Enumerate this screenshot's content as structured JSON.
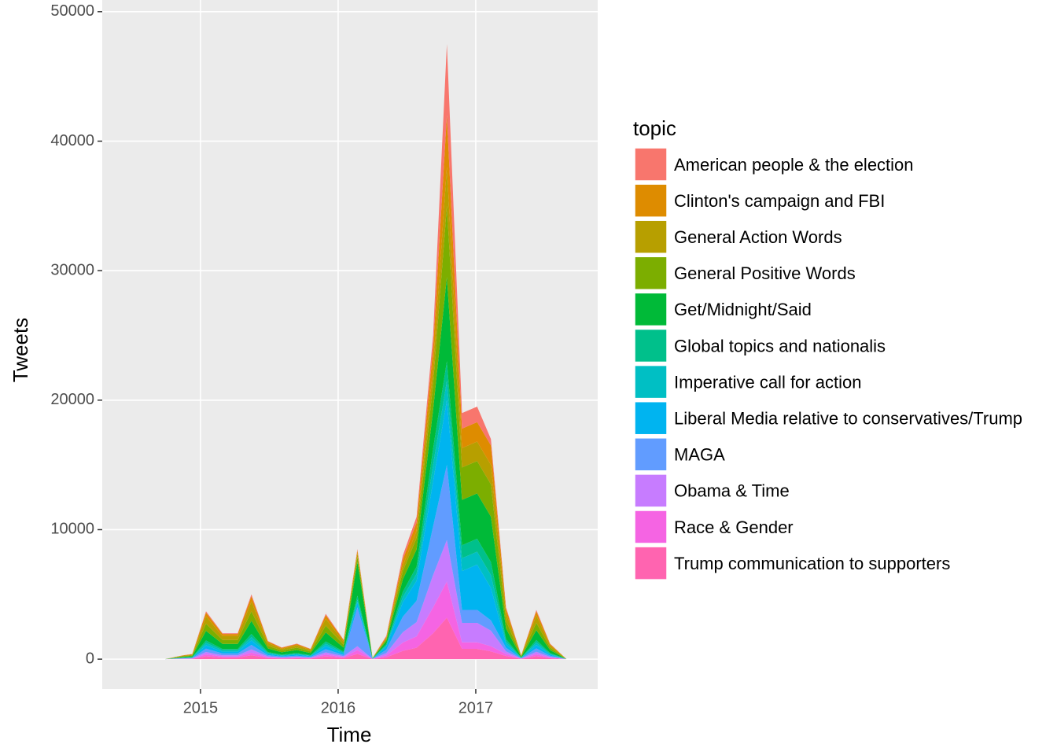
{
  "chart_data": {
    "type": "stacked-area",
    "x_label": "Time",
    "y_label": "Tweets",
    "legend_title": "topic",
    "x": [
      2014.74,
      2014.87,
      2014.94,
      2015.04,
      2015.16,
      2015.27,
      2015.37,
      2015.49,
      2015.59,
      2015.7,
      2015.8,
      2015.91,
      2016.04,
      2016.14,
      2016.25,
      2016.35,
      2016.47,
      2016.57,
      2016.69,
      2016.79,
      2016.9,
      2017.01,
      2017.11,
      2017.22,
      2017.33,
      2017.44,
      2017.54,
      2017.66
    ],
    "xlim": [
      2014.286,
      2017.886
    ],
    "xticks": [
      2015,
      2016,
      2017
    ],
    "ylim": [
      -2300,
      50900
    ],
    "yticks": [
      0,
      10000,
      20000,
      30000,
      40000,
      50000
    ],
    "grid": true,
    "series": [
      {
        "name": "American people & the election",
        "color": "#F8766D",
        "values": [
          0,
          9,
          12,
          111,
          60,
          60,
          150,
          42,
          27,
          36,
          24,
          105,
          45,
          100,
          3,
          72,
          320,
          440,
          1000,
          5500,
          1200,
          1200,
          500,
          120,
          9,
          114,
          36,
          0
        ]
      },
      {
        "name": "Clinton's campaign and FBI",
        "color": "#DE8C00",
        "values": [
          0,
          24,
          32,
          296,
          160,
          160,
          400,
          112,
          72,
          96,
          64,
          280,
          120,
          200,
          8,
          108,
          480,
          660,
          1500,
          4000,
          1500,
          1500,
          1500,
          320,
          24,
          304,
          96,
          0
        ]
      },
      {
        "name": "General Action Words",
        "color": "#B79F00",
        "values": [
          0,
          45,
          60,
          555,
          300,
          300,
          750,
          210,
          135,
          180,
          120,
          525,
          225,
          300,
          15,
          90,
          400,
          550,
          1250,
          3000,
          1500,
          1500,
          1500,
          600,
          45,
          570,
          180,
          0
        ]
      },
      {
        "name": "General Positive Words",
        "color": "#7CAE00",
        "values": [
          0,
          45,
          60,
          555,
          300,
          300,
          750,
          210,
          135,
          180,
          120,
          525,
          225,
          400,
          15,
          144,
          640,
          880,
          2000,
          5500,
          2500,
          2500,
          2500,
          600,
          45,
          570,
          180,
          0
        ]
      },
      {
        "name": "Get/Midnight/Said",
        "color": "#00BA38",
        "values": [
          0,
          60,
          80,
          740,
          400,
          400,
          1000,
          280,
          180,
          240,
          160,
          700,
          300,
          2600,
          20,
          216,
          960,
          1320,
          3000,
          6500,
          3500,
          3500,
          3500,
          800,
          60,
          760,
          240,
          0
        ]
      },
      {
        "name": "Global topics and nationalis",
        "color": "#00C08B",
        "values": [
          0,
          15,
          20,
          185,
          100,
          100,
          250,
          70,
          45,
          60,
          40,
          175,
          75,
          300,
          5,
          90,
          400,
          550,
          1250,
          1500,
          1000,
          1000,
          1000,
          200,
          15,
          190,
          60,
          0
        ]
      },
      {
        "name": "Imperative call for action",
        "color": "#00BFC4",
        "values": [
          0,
          15,
          20,
          185,
          100,
          100,
          250,
          70,
          45,
          60,
          40,
          175,
          75,
          200,
          5,
          90,
          400,
          550,
          1250,
          1500,
          1000,
          1000,
          1000,
          200,
          15,
          190,
          60,
          0
        ]
      },
      {
        "name": "Liberal Media relative to conservatives/Trump",
        "color": "#00B4F0",
        "values": [
          0,
          21,
          28,
          259,
          140,
          140,
          350,
          98,
          63,
          84,
          56,
          245,
          105,
          400,
          7,
          252,
          1120,
          1540,
          3500,
          5000,
          3000,
          3500,
          2500,
          280,
          21,
          266,
          84,
          0
        ]
      },
      {
        "name": "MAGA",
        "color": "#619CFF",
        "values": [
          0,
          21,
          28,
          259,
          140,
          140,
          350,
          98,
          63,
          84,
          56,
          245,
          105,
          3000,
          7,
          270,
          1200,
          1650,
          3750,
          5800,
          1000,
          1000,
          800,
          280,
          21,
          266,
          84,
          0
        ]
      },
      {
        "name": "Obama & Time",
        "color": "#C77CFF",
        "values": [
          0,
          15,
          20,
          185,
          100,
          100,
          250,
          70,
          45,
          60,
          40,
          175,
          75,
          300,
          5,
          180,
          800,
          1100,
          2500,
          3200,
          1500,
          1500,
          1200,
          200,
          15,
          190,
          60,
          0
        ]
      },
      {
        "name": "Race & Gender",
        "color": "#F564E3",
        "values": [
          0,
          12,
          16,
          148,
          80,
          80,
          200,
          56,
          36,
          48,
          32,
          140,
          60,
          300,
          4,
          144,
          640,
          880,
          2000,
          2800,
          500,
          500,
          400,
          160,
          12,
          152,
          48,
          0
        ]
      },
      {
        "name": "Trump communication to supporters",
        "color": "#FF64B0",
        "values": [
          0,
          18,
          24,
          222,
          120,
          120,
          300,
          84,
          54,
          72,
          48,
          210,
          90,
          400,
          6,
          144,
          640,
          880,
          2000,
          3200,
          800,
          800,
          600,
          240,
          18,
          228,
          72,
          0
        ]
      }
    ]
  }
}
